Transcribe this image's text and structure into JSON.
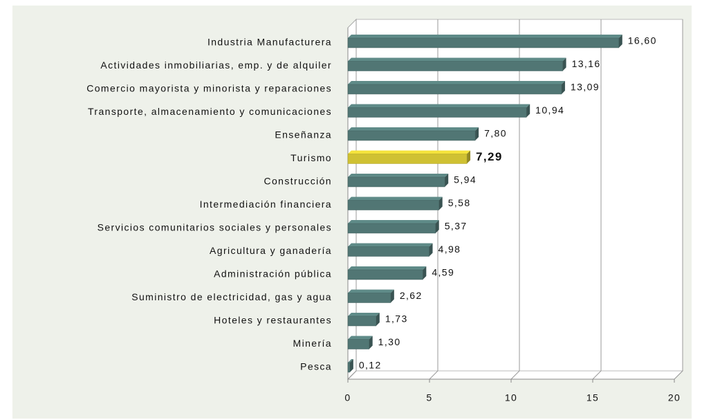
{
  "chart_data": {
    "type": "bar",
    "orientation": "horizontal",
    "categories": [
      "Industria Manufacturera",
      "Actividades inmobiliarias, emp. y de alquiler",
      "Comercio mayorista y minorista y reparaciones",
      "Transporte, almacenamiento y comunicaciones",
      "Enseñanza",
      "Turismo",
      "Construcción",
      "Intermediación financiera",
      "Servicios comunitarios sociales y personales",
      "Agricultura y ganadería",
      "Administración pública",
      "Suministro de electricidad, gas y agua",
      "Hoteles y restaurantes",
      "Minería",
      "Pesca"
    ],
    "values": [
      16.6,
      13.16,
      13.09,
      10.94,
      7.8,
      7.29,
      5.94,
      5.58,
      5.37,
      4.98,
      4.59,
      2.62,
      1.73,
      1.3,
      0.12
    ],
    "value_labels": [
      "16,60",
      "13,16",
      "13,09",
      "10,94",
      "7,80",
      "7,29",
      "5,94",
      "5,58",
      "5,37",
      "4,98",
      "4,59",
      "2,62",
      "1,73",
      "1,30",
      "0,12"
    ],
    "colors": [
      "#5f8b88",
      "#5f8b88",
      "#5f8b88",
      "#5f8b88",
      "#5f8b88",
      "#f4e33c",
      "#5f8b88",
      "#5f8b88",
      "#5f8b88",
      "#5f8b88",
      "#5f8b88",
      "#5f8b88",
      "#5f8b88",
      "#5f8b88",
      "#5f8b88"
    ],
    "highlight": 5,
    "xlim": [
      0,
      20
    ],
    "xticks": [
      0,
      5,
      10,
      15,
      20
    ],
    "grid": true
  }
}
